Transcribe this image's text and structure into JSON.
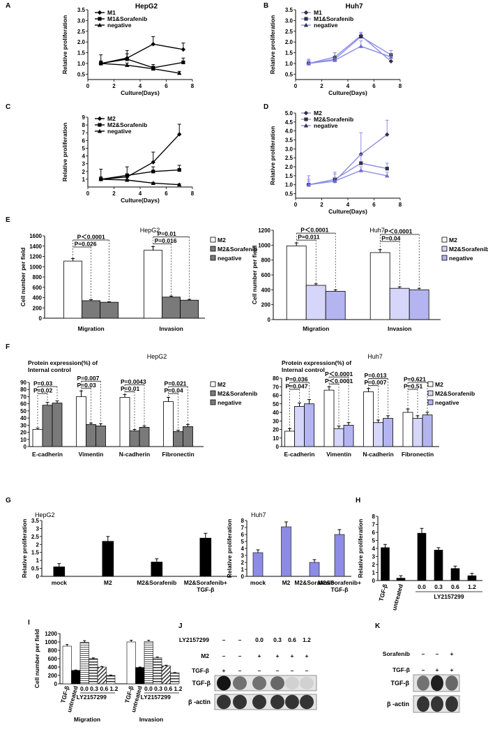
{
  "chart_data": [
    {
      "id": "A",
      "panel_label": "A",
      "type": "line",
      "title": "HepG2",
      "xlabel": "Culture(Days)",
      "ylabel": "Relative proliferation",
      "x": [
        1,
        3,
        5,
        7
      ],
      "xlim": [
        0,
        8
      ],
      "xticks": [
        "0",
        "0.5",
        "1",
        "1.5",
        "2",
        "2.5",
        "3",
        "3.5",
        "4",
        "4.5",
        "5",
        "5.5",
        "6",
        "6.5",
        "7",
        "7.5",
        "8"
      ],
      "xticks_shown": [
        "2",
        "4",
        "6",
        "8"
      ],
      "ylim": [
        0.25,
        3.5
      ],
      "yticks": [
        0.5,
        1.0,
        1.5,
        2.0,
        2.5,
        3.0,
        3.5
      ],
      "ytick_labels": [
        "0.5",
        "1.0",
        "1.5",
        "2.0",
        "2.5",
        "3.0",
        "3.5"
      ],
      "color": "#000000",
      "legend": "top-left",
      "series": [
        {
          "name": "M1",
          "marker": "diamond",
          "x": [
            1,
            3,
            5,
            7.3
          ],
          "values": [
            1.0,
            1.25,
            1.9,
            1.65
          ],
          "err": [
            0.12,
            0.35,
            0.35,
            0.3
          ]
        },
        {
          "name": "M1&Sorafenib",
          "marker": "square",
          "x": [
            1,
            3,
            5,
            7.3
          ],
          "values": [
            1.0,
            1.2,
            0.8,
            1.05
          ],
          "err": [
            0.4,
            0.25,
            0.15,
            0.2
          ]
        },
        {
          "name": "negative",
          "marker": "triangle",
          "x": [
            1,
            3,
            5,
            7
          ],
          "values": [
            1.0,
            0.92,
            0.75,
            0.55
          ],
          "err": [
            0.08,
            0.1,
            0.1,
            0.08
          ]
        }
      ]
    },
    {
      "id": "B",
      "panel_label": "B",
      "type": "line",
      "title": "Huh7",
      "xlabel": "Culture(Days)",
      "ylabel": "Relative proliferation",
      "xlim": [
        0,
        8
      ],
      "xticks_shown": [
        "2",
        "4",
        "6",
        "8"
      ],
      "ylim": [
        0.25,
        3.5
      ],
      "yticks": [
        0.5,
        1.0,
        1.5,
        2.0,
        2.5,
        3.0,
        3.5
      ],
      "ytick_labels": [
        "0.5",
        "1.0",
        "1.5",
        "2.0",
        "2.5",
        "3.0",
        "3.5"
      ],
      "color": "#8c8ce6",
      "legend": "top-left",
      "series": [
        {
          "name": "M1",
          "marker": "diamond",
          "x": [
            1,
            3,
            5,
            7.3
          ],
          "values": [
            1.0,
            1.3,
            2.3,
            1.1
          ],
          "err": [
            0.15,
            0.2,
            0.1,
            0.25
          ]
        },
        {
          "name": "M1&Sorafenib",
          "marker": "square",
          "x": [
            1,
            3,
            5,
            7.3
          ],
          "values": [
            1.0,
            1.2,
            2.25,
            1.4
          ],
          "err": [
            0.2,
            0.3,
            0.2,
            0.2
          ]
        },
        {
          "name": "negative",
          "marker": "triangle",
          "x": [
            1,
            3,
            5,
            7.3
          ],
          "values": [
            1.0,
            1.15,
            1.8,
            1.3
          ],
          "err": [
            0.1,
            0.1,
            0.25,
            0.15
          ]
        }
      ]
    },
    {
      "id": "C",
      "panel_label": "C",
      "type": "line",
      "title": "",
      "xlabel": "Culture(Days)",
      "ylabel": "Relative proliferation",
      "xlim": [
        0,
        8
      ],
      "xticks_shown": [
        "2",
        "4",
        "6",
        "8"
      ],
      "ylim": [
        0,
        9
      ],
      "yticks": [
        1,
        2,
        3,
        4,
        5,
        6,
        7,
        8,
        9
      ],
      "ytick_labels": [
        "1",
        "2",
        "3",
        "4",
        "5",
        "6",
        "7",
        "8",
        "9"
      ],
      "color": "#000000",
      "legend": "top-left",
      "series": [
        {
          "name": "M2",
          "marker": "diamond",
          "x": [
            1,
            3,
            5,
            7
          ],
          "values": [
            1.0,
            1.3,
            3.2,
            6.8
          ],
          "err": [
            1.3,
            1.3,
            1.3,
            1.3
          ]
        },
        {
          "name": "M2&Sorafenib",
          "marker": "square",
          "x": [
            1,
            3,
            5,
            7
          ],
          "values": [
            1.0,
            1.5,
            2.0,
            2.2
          ],
          "err": [
            0.3,
            0.2,
            0.6,
            0.6
          ]
        },
        {
          "name": "negative",
          "marker": "triangle",
          "x": [
            1,
            3,
            5,
            7
          ],
          "values": [
            1.0,
            0.9,
            0.5,
            0.3
          ],
          "err": [
            0.15,
            0.1,
            0.1,
            0.1
          ]
        }
      ]
    },
    {
      "id": "D",
      "panel_label": "D",
      "type": "line",
      "title": "",
      "xlabel": "Culture(Days)",
      "ylabel": "Relative proliferation",
      "xlim": [
        0,
        8
      ],
      "xticks_shown": [
        "2",
        "4",
        "6",
        "8"
      ],
      "ylim": [
        0.25,
        5.0
      ],
      "yticks": [
        0.5,
        1.0,
        1.5,
        2.0,
        2.5,
        3.0,
        3.5,
        4.0,
        4.5,
        5.0
      ],
      "ytick_labels": [
        "0.5",
        "1.0",
        "1.5",
        "2.0",
        "2.5",
        "3.0",
        "3.5",
        "4.0",
        "4.5",
        "5.0"
      ],
      "color": "#8c8ce6",
      "legend": "top-left",
      "series": [
        {
          "name": "M2",
          "marker": "diamond",
          "x": [
            1,
            3,
            5,
            7
          ],
          "values": [
            1.0,
            1.2,
            2.7,
            3.8
          ],
          "err": [
            0.5,
            0.5,
            1.2,
            0.8
          ]
        },
        {
          "name": "M2&Sorafenib",
          "marker": "square",
          "x": [
            1,
            3,
            5,
            7
          ],
          "values": [
            1.0,
            1.3,
            2.2,
            1.9
          ],
          "err": [
            0.3,
            0.3,
            0.5,
            0.3
          ]
        },
        {
          "name": "negative",
          "marker": "triangle",
          "x": [
            1,
            3,
            5,
            7
          ],
          "values": [
            1.0,
            1.2,
            1.8,
            1.5
          ],
          "err": [
            0.2,
            0.2,
            0.2,
            0.2
          ]
        }
      ]
    },
    {
      "id": "E1",
      "panel_label": "E",
      "type": "bar",
      "title": "HepG2",
      "ylabel": "Cell number per field",
      "categories": [
        "Migration",
        "Invasion"
      ],
      "ylim": [
        0,
        1600
      ],
      "yticks": [
        0,
        200,
        400,
        600,
        800,
        1000,
        1200,
        1400,
        1600
      ],
      "ytick_labels": [
        "0",
        "200",
        "400",
        "600",
        "800",
        "1000",
        "1200",
        "1400",
        "1600"
      ],
      "series": [
        {
          "name": "M2",
          "values": [
            1110,
            1320
          ],
          "err": [
            50,
            70
          ],
          "fill": "#ffffff"
        },
        {
          "name": "M2&Sorafenib",
          "values": [
            340,
            410
          ],
          "err": [
            20,
            20
          ],
          "fill": "#808080"
        },
        {
          "name": "negative",
          "values": [
            310,
            350
          ],
          "err": [
            10,
            15
          ],
          "fill": "#808080"
        }
      ],
      "annotations": [
        "P＜0.0001",
        "P=0.026",
        "P=0.01",
        "P=0.016"
      ]
    },
    {
      "id": "E2",
      "type": "bar",
      "title": "Huh7",
      "ylabel": "Cell number per field",
      "categories": [
        "Migration",
        "Invasion"
      ],
      "ylim": [
        0,
        1200
      ],
      "yticks": [
        0,
        200,
        400,
        600,
        800,
        1000,
        1200
      ],
      "ytick_labels": [
        "0",
        "200",
        "400",
        "600",
        "800",
        "1000",
        "1200"
      ],
      "series": [
        {
          "name": "M2",
          "values": [
            990,
            900
          ],
          "err": [
            40,
            40
          ],
          "fill": "#ffffff"
        },
        {
          "name": "M2&Sorafenib",
          "values": [
            460,
            420
          ],
          "err": [
            20,
            20
          ],
          "fill": "#d8d8f8"
        },
        {
          "name": "negative",
          "values": [
            380,
            400
          ],
          "err": [
            20,
            20
          ],
          "fill": "#c8c8f4"
        }
      ],
      "annotations": [
        "P＜0.0001",
        "P=0.011",
        "P＜0.0001",
        "P=0.04"
      ]
    },
    {
      "id": "F1",
      "panel_label": "F",
      "type": "bar",
      "title": "HepG2",
      "ylabel": "Protein expression(%) of Internal  control",
      "categories": [
        "E-cadherin",
        "Vimentin",
        "N-cadherin",
        "Fibronectin"
      ],
      "ylim": [
        0,
        90
      ],
      "yticks": [
        0,
        10,
        20,
        30,
        40,
        50,
        60,
        70,
        80,
        90
      ],
      "ytick_labels": [
        "0",
        "10",
        "20",
        "30",
        "40",
        "50",
        "60",
        "70",
        "80",
        "90"
      ],
      "series": [
        {
          "name": "M2",
          "values": [
            24,
            70,
            69,
            63
          ],
          "err": [
            2,
            8,
            4,
            6
          ],
          "fill": "#ffffff"
        },
        {
          "name": "M2&Sorafenib",
          "values": [
            58,
            31,
            22,
            21
          ],
          "err": [
            4,
            2,
            2,
            2
          ],
          "fill": "#808080"
        },
        {
          "name": "negative",
          "values": [
            61,
            29,
            27,
            28
          ],
          "err": [
            3,
            3,
            2,
            3
          ],
          "fill": "#808080"
        }
      ],
      "annotations": [
        "P=0.03",
        "P=0.02",
        "P=0.007",
        "P=0.03",
        "P=0.0043",
        "P=0.01",
        "P=0.021",
        "P=0.04"
      ]
    },
    {
      "id": "F2",
      "type": "bar",
      "title": "Huh7",
      "ylabel": "Protein expression(%) of Internal  control",
      "categories": [
        "E-cadherin",
        "Vimentin",
        "N-cadherin",
        "Fibronectin"
      ],
      "ylim": [
        0,
        80
      ],
      "yticks": [
        0,
        10,
        20,
        30,
        40,
        50,
        60,
        70,
        80
      ],
      "ytick_labels": [
        "0",
        "10",
        "20",
        "30",
        "40",
        "50",
        "60",
        "70",
        "80"
      ],
      "series": [
        {
          "name": "M2",
          "values": [
            18,
            66,
            64,
            40
          ],
          "err": [
            3,
            4,
            4,
            4
          ],
          "fill": "#ffffff"
        },
        {
          "name": "M2&Sorafenib",
          "values": [
            47,
            21,
            28,
            33
          ],
          "err": [
            4,
            3,
            3,
            3
          ],
          "fill": "#d8d8f8"
        },
        {
          "name": "negative",
          "values": [
            50,
            25,
            33,
            37
          ],
          "err": [
            5,
            3,
            3,
            3
          ],
          "fill": "#c8c8f4"
        }
      ],
      "annotations": [
        "P=0.036",
        "P=0.047",
        "P＜0.0001",
        "P＜0.0001",
        "P=0.013",
        "P=0.007",
        "P=0.621",
        "P=0.51"
      ]
    },
    {
      "id": "G1",
      "panel_label": "G",
      "type": "bar",
      "title": "HepG2",
      "ylabel": "Relative proliferation",
      "categories": [
        "mock",
        "M2",
        "M2&Sorafenib",
        "M2&Sorafenib+\nTGF-β"
      ],
      "values": [
        0.6,
        2.2,
        0.9,
        2.4
      ],
      "err": [
        0.2,
        0.3,
        0.2,
        0.3
      ],
      "ylim": [
        0,
        3.5
      ],
      "yticks": [
        0,
        0.5,
        1,
        1.5,
        2,
        2.5,
        3,
        3.5
      ],
      "ytick_labels": [
        "0",
        "0.5",
        "1",
        "1.5",
        "2",
        "2.5",
        "3",
        "3.5"
      ],
      "fill": "#000000"
    },
    {
      "id": "G2",
      "type": "bar",
      "title": "Huh7",
      "ylabel": "Relative proliferation",
      "categories": [
        "mock",
        "M2",
        "M2&Sorafenib",
        "M2&Sorafenib+\nTGF-β"
      ],
      "values": [
        3.4,
        7.1,
        2.0,
        6.0
      ],
      "err": [
        0.4,
        0.7,
        0.4,
        0.7
      ],
      "ylim": [
        0,
        8
      ],
      "yticks": [
        0,
        1,
        2,
        3,
        4,
        5,
        6,
        7,
        8
      ],
      "ytick_labels": [
        "0",
        "1",
        "2",
        "3",
        "4",
        "5",
        "6",
        "7",
        "8"
      ],
      "fill": "#8c8ce6"
    },
    {
      "id": "H",
      "panel_label": "H",
      "type": "bar",
      "title": "",
      "ylabel": "Relative proliferation",
      "categories": [
        "TGF-β",
        "untreated",
        "0.0",
        "0.3",
        "0.6",
        "1.2"
      ],
      "group_label": "LY2157299",
      "values": [
        4.1,
        0.3,
        5.9,
        3.8,
        1.5,
        0.6
      ],
      "err": [
        0.4,
        0.3,
        0.6,
        0.3,
        0.3,
        0.3
      ],
      "ylim": [
        0,
        8
      ],
      "yticks": [
        0,
        1,
        2,
        3,
        4,
        5,
        6,
        7,
        8
      ],
      "ytick_labels": [
        "0",
        "1",
        "2",
        "3",
        "4",
        "5",
        "6",
        "7",
        "8"
      ],
      "fill": "#000000"
    },
    {
      "id": "I",
      "panel_label": "I",
      "type": "bar",
      "title": "",
      "ylabel": "Cell number per field",
      "groups": [
        {
          "name": "Migration",
          "categories": [
            "TGF-β",
            "untreated",
            "0.0",
            "0.3",
            "0.6",
            "1.2"
          ],
          "values": [
            900,
            320,
            990,
            600,
            400,
            200
          ],
          "err": [
            40,
            10,
            40,
            20,
            15,
            10
          ]
        },
        {
          "name": "Invasion",
          "categories": [
            "TGF-β",
            "untreated",
            "0.0",
            "0.3",
            "0.6",
            "1.2"
          ],
          "values": [
            1000,
            390,
            1010,
            620,
            430,
            260
          ],
          "err": [
            40,
            10,
            30,
            20,
            15,
            10
          ]
        }
      ],
      "group_label": "LY2157299",
      "tick_text": "0.0 0.3 0.6 1.2",
      "ylim": [
        0,
        1200
      ],
      "yticks": [
        0,
        200,
        400,
        600,
        800,
        1000,
        1200
      ],
      "ytick_labels": [
        "0",
        "200",
        "400",
        "600",
        "800",
        "1000",
        "1200"
      ]
    }
  ],
  "legends": {
    "E1": [
      "M2",
      "M2&Sorafenib",
      "negative"
    ],
    "E2": [
      "M2",
      "M2&Sorafenib",
      "negative"
    ],
    "F1": [
      "M2",
      "M2&Sorafenib",
      "negative"
    ],
    "F2": [
      "M2",
      "M2&Sorafenib",
      "negative"
    ]
  },
  "blots": {
    "J": {
      "panel_label": "J",
      "rows": [
        {
          "label": "LY2157299",
          "values": [
            "–",
            "–",
            "0.0",
            "0.3",
            "0.6",
            "1.2"
          ]
        },
        {
          "label": "M2",
          "values": [
            "–",
            "–",
            "+",
            "+",
            "+",
            "+"
          ]
        },
        {
          "label": "TGF-β",
          "values": [
            "+",
            "–",
            "–",
            "–",
            "–",
            "–"
          ]
        }
      ],
      "bands": [
        {
          "label": "TGF-β",
          "intensity": [
            1.0,
            0.55,
            0.55,
            0.6,
            0.1,
            0.1
          ]
        },
        {
          "label": "β -actin",
          "intensity": [
            0.85,
            0.85,
            0.85,
            0.85,
            0.85,
            0.85
          ]
        }
      ]
    },
    "K": {
      "panel_label": "K",
      "rows": [
        {
          "label": "Sorafenib",
          "values": [
            "–",
            "–",
            "+"
          ]
        },
        {
          "label": "TGF-β",
          "values": [
            "–",
            "+",
            "+"
          ]
        }
      ],
      "bands": [
        {
          "label": "TGF-β",
          "intensity": [
            0.55,
            0.95,
            0.6
          ]
        },
        {
          "label": "β -actin",
          "intensity": [
            0.85,
            0.85,
            0.85
          ]
        }
      ]
    }
  }
}
